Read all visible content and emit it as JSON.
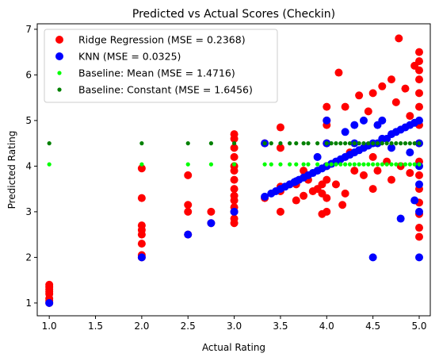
{
  "chart_data": {
    "type": "scatter",
    "title": "Predicted vs Actual Scores (Checkin)",
    "xlabel": "Actual Rating",
    "ylabel": "Predicted Rating",
    "xlim": [
      0.87,
      5.12
    ],
    "ylim": [
      0.72,
      7.12
    ],
    "xticks": [
      "1.0",
      "1.5",
      "2.0",
      "2.5",
      "3.0",
      "3.5",
      "4.0",
      "4.5",
      "5.0"
    ],
    "yticks": [
      "1",
      "2",
      "3",
      "4",
      "5",
      "6",
      "7"
    ],
    "grid": false,
    "legend_position": "top-left",
    "series": [
      {
        "name": "Ridge Regression (MSE = 0.2368)",
        "color": "#ff0000",
        "marker": "large-circle",
        "points": [
          [
            1.0,
            1.0
          ],
          [
            1.0,
            1.05
          ],
          [
            1.0,
            1.1
          ],
          [
            1.0,
            1.2
          ],
          [
            1.0,
            1.25
          ],
          [
            1.0,
            1.3
          ],
          [
            1.0,
            1.35
          ],
          [
            1.0,
            1.4
          ],
          [
            2.0,
            2.0
          ],
          [
            2.0,
            2.05
          ],
          [
            2.0,
            2.3
          ],
          [
            2.0,
            2.5
          ],
          [
            2.0,
            2.6
          ],
          [
            2.0,
            2.7
          ],
          [
            2.0,
            3.3
          ],
          [
            2.0,
            3.95
          ],
          [
            2.5,
            2.5
          ],
          [
            2.5,
            3.0
          ],
          [
            2.5,
            3.15
          ],
          [
            2.5,
            3.8
          ],
          [
            2.75,
            2.75
          ],
          [
            2.75,
            3.0
          ],
          [
            3.0,
            2.75
          ],
          [
            3.0,
            2.85
          ],
          [
            3.0,
            3.0
          ],
          [
            3.0,
            3.1
          ],
          [
            3.0,
            3.25
          ],
          [
            3.0,
            3.35
          ],
          [
            3.0,
            3.5
          ],
          [
            3.0,
            3.7
          ],
          [
            3.0,
            3.9
          ],
          [
            3.0,
            4.0
          ],
          [
            3.0,
            4.2
          ],
          [
            3.0,
            4.4
          ],
          [
            3.0,
            4.6
          ],
          [
            3.0,
            4.7
          ],
          [
            3.33,
            3.3
          ],
          [
            3.33,
            4.5
          ],
          [
            3.5,
            3.0
          ],
          [
            3.5,
            3.45
          ],
          [
            3.5,
            3.55
          ],
          [
            3.5,
            4.4
          ],
          [
            3.5,
            4.85
          ],
          [
            3.6,
            3.6
          ],
          [
            3.67,
            3.25
          ],
          [
            3.67,
            3.6
          ],
          [
            3.75,
            3.35
          ],
          [
            3.75,
            3.9
          ],
          [
            3.8,
            3.7
          ],
          [
            3.85,
            3.45
          ],
          [
            3.9,
            3.5
          ],
          [
            3.95,
            2.95
          ],
          [
            3.95,
            3.4
          ],
          [
            3.95,
            3.6
          ],
          [
            4.0,
            3.0
          ],
          [
            4.0,
            3.3
          ],
          [
            4.0,
            3.7
          ],
          [
            4.0,
            4.0
          ],
          [
            4.0,
            4.5
          ],
          [
            4.0,
            4.9
          ],
          [
            4.0,
            5.0
          ],
          [
            4.0,
            5.3
          ],
          [
            4.1,
            3.6
          ],
          [
            4.13,
            6.05
          ],
          [
            4.17,
            3.15
          ],
          [
            4.2,
            3.4
          ],
          [
            4.2,
            5.3
          ],
          [
            4.25,
            4.3
          ],
          [
            4.3,
            3.9
          ],
          [
            4.35,
            5.55
          ],
          [
            4.4,
            3.8
          ],
          [
            4.45,
            5.2
          ],
          [
            4.5,
            3.5
          ],
          [
            4.5,
            4.2
          ],
          [
            4.5,
            5.6
          ],
          [
            4.55,
            3.9
          ],
          [
            4.6,
            5.75
          ],
          [
            4.65,
            4.1
          ],
          [
            4.7,
            3.7
          ],
          [
            4.7,
            5.9
          ],
          [
            4.75,
            5.4
          ],
          [
            4.78,
            6.8
          ],
          [
            4.8,
            4.0
          ],
          [
            4.85,
            5.7
          ],
          [
            4.9,
            3.85
          ],
          [
            4.9,
            5.1
          ],
          [
            4.95,
            6.2
          ],
          [
            5.0,
            2.45
          ],
          [
            5.0,
            2.65
          ],
          [
            5.0,
            2.95
          ],
          [
            5.0,
            3.2
          ],
          [
            5.0,
            3.5
          ],
          [
            5.0,
            3.8
          ],
          [
            5.0,
            4.1
          ],
          [
            5.0,
            4.5
          ],
          [
            5.0,
            4.9
          ],
          [
            5.0,
            5.3
          ],
          [
            5.0,
            5.6
          ],
          [
            5.0,
            5.9
          ],
          [
            5.0,
            6.1
          ],
          [
            5.0,
            6.3
          ],
          [
            5.0,
            6.5
          ]
        ]
      },
      {
        "name": "KNN (MSE = 0.0325)",
        "color": "#0000ff",
        "marker": "large-circle",
        "points": [
          [
            1.0,
            1.0
          ],
          [
            2.0,
            2.0
          ],
          [
            2.5,
            2.5
          ],
          [
            2.75,
            2.75
          ],
          [
            3.0,
            3.0
          ],
          [
            3.33,
            3.33
          ],
          [
            3.33,
            4.5
          ],
          [
            3.4,
            3.4
          ],
          [
            3.45,
            3.45
          ],
          [
            3.5,
            3.5
          ],
          [
            3.55,
            3.55
          ],
          [
            3.6,
            3.6
          ],
          [
            3.65,
            3.65
          ],
          [
            3.67,
            3.67
          ],
          [
            3.7,
            3.7
          ],
          [
            3.75,
            3.75
          ],
          [
            3.8,
            3.8
          ],
          [
            3.85,
            3.85
          ],
          [
            3.9,
            3.9
          ],
          [
            3.95,
            3.95
          ],
          [
            3.9,
            4.2
          ],
          [
            4.0,
            4.0
          ],
          [
            4.0,
            4.5
          ],
          [
            4.0,
            5.0
          ],
          [
            4.05,
            4.05
          ],
          [
            4.1,
            4.1
          ],
          [
            4.15,
            4.15
          ],
          [
            4.2,
            4.2
          ],
          [
            4.25,
            4.25
          ],
          [
            4.3,
            4.3
          ],
          [
            4.2,
            4.75
          ],
          [
            4.35,
            4.35
          ],
          [
            4.4,
            4.4
          ],
          [
            4.45,
            4.45
          ],
          [
            4.5,
            4.5
          ],
          [
            4.5,
            2.0
          ],
          [
            4.55,
            4.5
          ],
          [
            4.6,
            4.6
          ],
          [
            4.65,
            4.6
          ],
          [
            4.7,
            4.7
          ],
          [
            4.75,
            4.75
          ],
          [
            4.8,
            4.8
          ],
          [
            4.8,
            2.85
          ],
          [
            4.85,
            4.85
          ],
          [
            4.9,
            4.9
          ],
          [
            4.95,
            3.25
          ],
          [
            4.95,
            4.95
          ],
          [
            5.0,
            2.0
          ],
          [
            5.0,
            3.0
          ],
          [
            5.0,
            3.6
          ],
          [
            5.0,
            4.0
          ],
          [
            5.0,
            4.5
          ],
          [
            5.0,
            5.0
          ],
          [
            4.3,
            4.9
          ],
          [
            4.4,
            5.0
          ],
          [
            4.6,
            5.0
          ],
          [
            4.7,
            4.4
          ],
          [
            4.9,
            4.3
          ],
          [
            4.3,
            4.5
          ],
          [
            4.55,
            4.9
          ]
        ]
      },
      {
        "name": "Baseline: Mean (MSE = 1.4716)",
        "color": "#00ff00",
        "marker": "small-circle",
        "points": [
          [
            1.0,
            4.04
          ],
          [
            2.0,
            4.04
          ],
          [
            2.5,
            4.04
          ],
          [
            2.75,
            4.04
          ],
          [
            3.0,
            4.04
          ],
          [
            3.33,
            4.04
          ],
          [
            3.4,
            4.04
          ],
          [
            3.5,
            4.04
          ],
          [
            3.6,
            4.04
          ],
          [
            3.67,
            4.04
          ],
          [
            3.75,
            4.04
          ],
          [
            3.8,
            4.04
          ],
          [
            3.9,
            4.04
          ],
          [
            4.0,
            4.04
          ],
          [
            4.05,
            4.04
          ],
          [
            4.1,
            4.04
          ],
          [
            4.15,
            4.04
          ],
          [
            4.2,
            4.04
          ],
          [
            4.25,
            4.04
          ],
          [
            4.3,
            4.04
          ],
          [
            4.35,
            4.04
          ],
          [
            4.4,
            4.04
          ],
          [
            4.45,
            4.04
          ],
          [
            4.5,
            4.04
          ],
          [
            4.55,
            4.04
          ],
          [
            4.6,
            4.04
          ],
          [
            4.65,
            4.04
          ],
          [
            4.7,
            4.04
          ],
          [
            4.75,
            4.04
          ],
          [
            4.8,
            4.04
          ],
          [
            4.85,
            4.04
          ],
          [
            4.9,
            4.04
          ],
          [
            4.95,
            4.04
          ],
          [
            5.0,
            4.04
          ]
        ]
      },
      {
        "name": "Baseline: Constant (MSE = 1.6456)",
        "color": "#008000",
        "marker": "small-circle",
        "points": [
          [
            1.0,
            4.5
          ],
          [
            2.0,
            4.5
          ],
          [
            2.5,
            4.5
          ],
          [
            2.75,
            4.5
          ],
          [
            3.0,
            4.5
          ],
          [
            3.33,
            4.5
          ],
          [
            3.4,
            4.5
          ],
          [
            3.5,
            4.5
          ],
          [
            3.6,
            4.5
          ],
          [
            3.67,
            4.5
          ],
          [
            3.75,
            4.5
          ],
          [
            3.8,
            4.5
          ],
          [
            3.9,
            4.5
          ],
          [
            4.0,
            4.5
          ],
          [
            4.05,
            4.5
          ],
          [
            4.1,
            4.5
          ],
          [
            4.15,
            4.5
          ],
          [
            4.2,
            4.5
          ],
          [
            4.25,
            4.5
          ],
          [
            4.3,
            4.5
          ],
          [
            4.35,
            4.5
          ],
          [
            4.4,
            4.5
          ],
          [
            4.45,
            4.5
          ],
          [
            4.5,
            4.5
          ],
          [
            4.55,
            4.5
          ],
          [
            4.6,
            4.5
          ],
          [
            4.65,
            4.5
          ],
          [
            4.7,
            4.5
          ],
          [
            4.75,
            4.5
          ],
          [
            4.8,
            4.5
          ],
          [
            4.85,
            4.5
          ],
          [
            4.9,
            4.5
          ],
          [
            4.95,
            4.5
          ],
          [
            5.0,
            4.5
          ]
        ]
      }
    ]
  }
}
